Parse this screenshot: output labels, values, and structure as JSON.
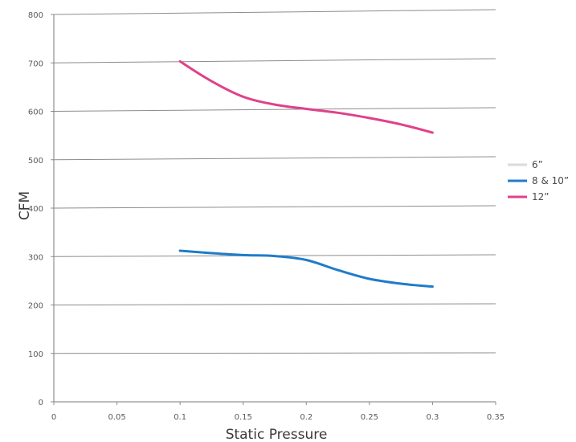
{
  "chart_data": {
    "type": "line",
    "title": "",
    "xlabel": "Static Pressure",
    "ylabel": "CFM",
    "xlim": [
      0,
      0.35
    ],
    "ylim": [
      0,
      800
    ],
    "x_ticks": [
      "0",
      "0.05",
      "0.1",
      "0.15",
      "0.2",
      "0.25",
      "0.3",
      "0.35"
    ],
    "y_ticks": [
      "0",
      "100",
      "200",
      "300",
      "400",
      "500",
      "600",
      "700",
      "800"
    ],
    "grid": true,
    "legend_position": "right",
    "series": [
      {
        "name": "6”",
        "color": "#dadada",
        "points": []
      },
      {
        "name": "8 & 10”",
        "color": "#1f7cc9",
        "points": [
          [
            0.1,
            312
          ],
          [
            0.125,
            307
          ],
          [
            0.15,
            303
          ],
          [
            0.175,
            301
          ],
          [
            0.2,
            293
          ],
          [
            0.225,
            272
          ],
          [
            0.25,
            254
          ],
          [
            0.275,
            244
          ],
          [
            0.3,
            238
          ]
        ]
      },
      {
        "name": "12”",
        "color": "#e0418b",
        "points": [
          [
            0.1,
            703
          ],
          [
            0.125,
            662
          ],
          [
            0.15,
            630
          ],
          [
            0.175,
            614
          ],
          [
            0.2,
            605
          ],
          [
            0.225,
            597
          ],
          [
            0.25,
            586
          ],
          [
            0.275,
            573
          ],
          [
            0.3,
            556
          ]
        ]
      }
    ]
  }
}
